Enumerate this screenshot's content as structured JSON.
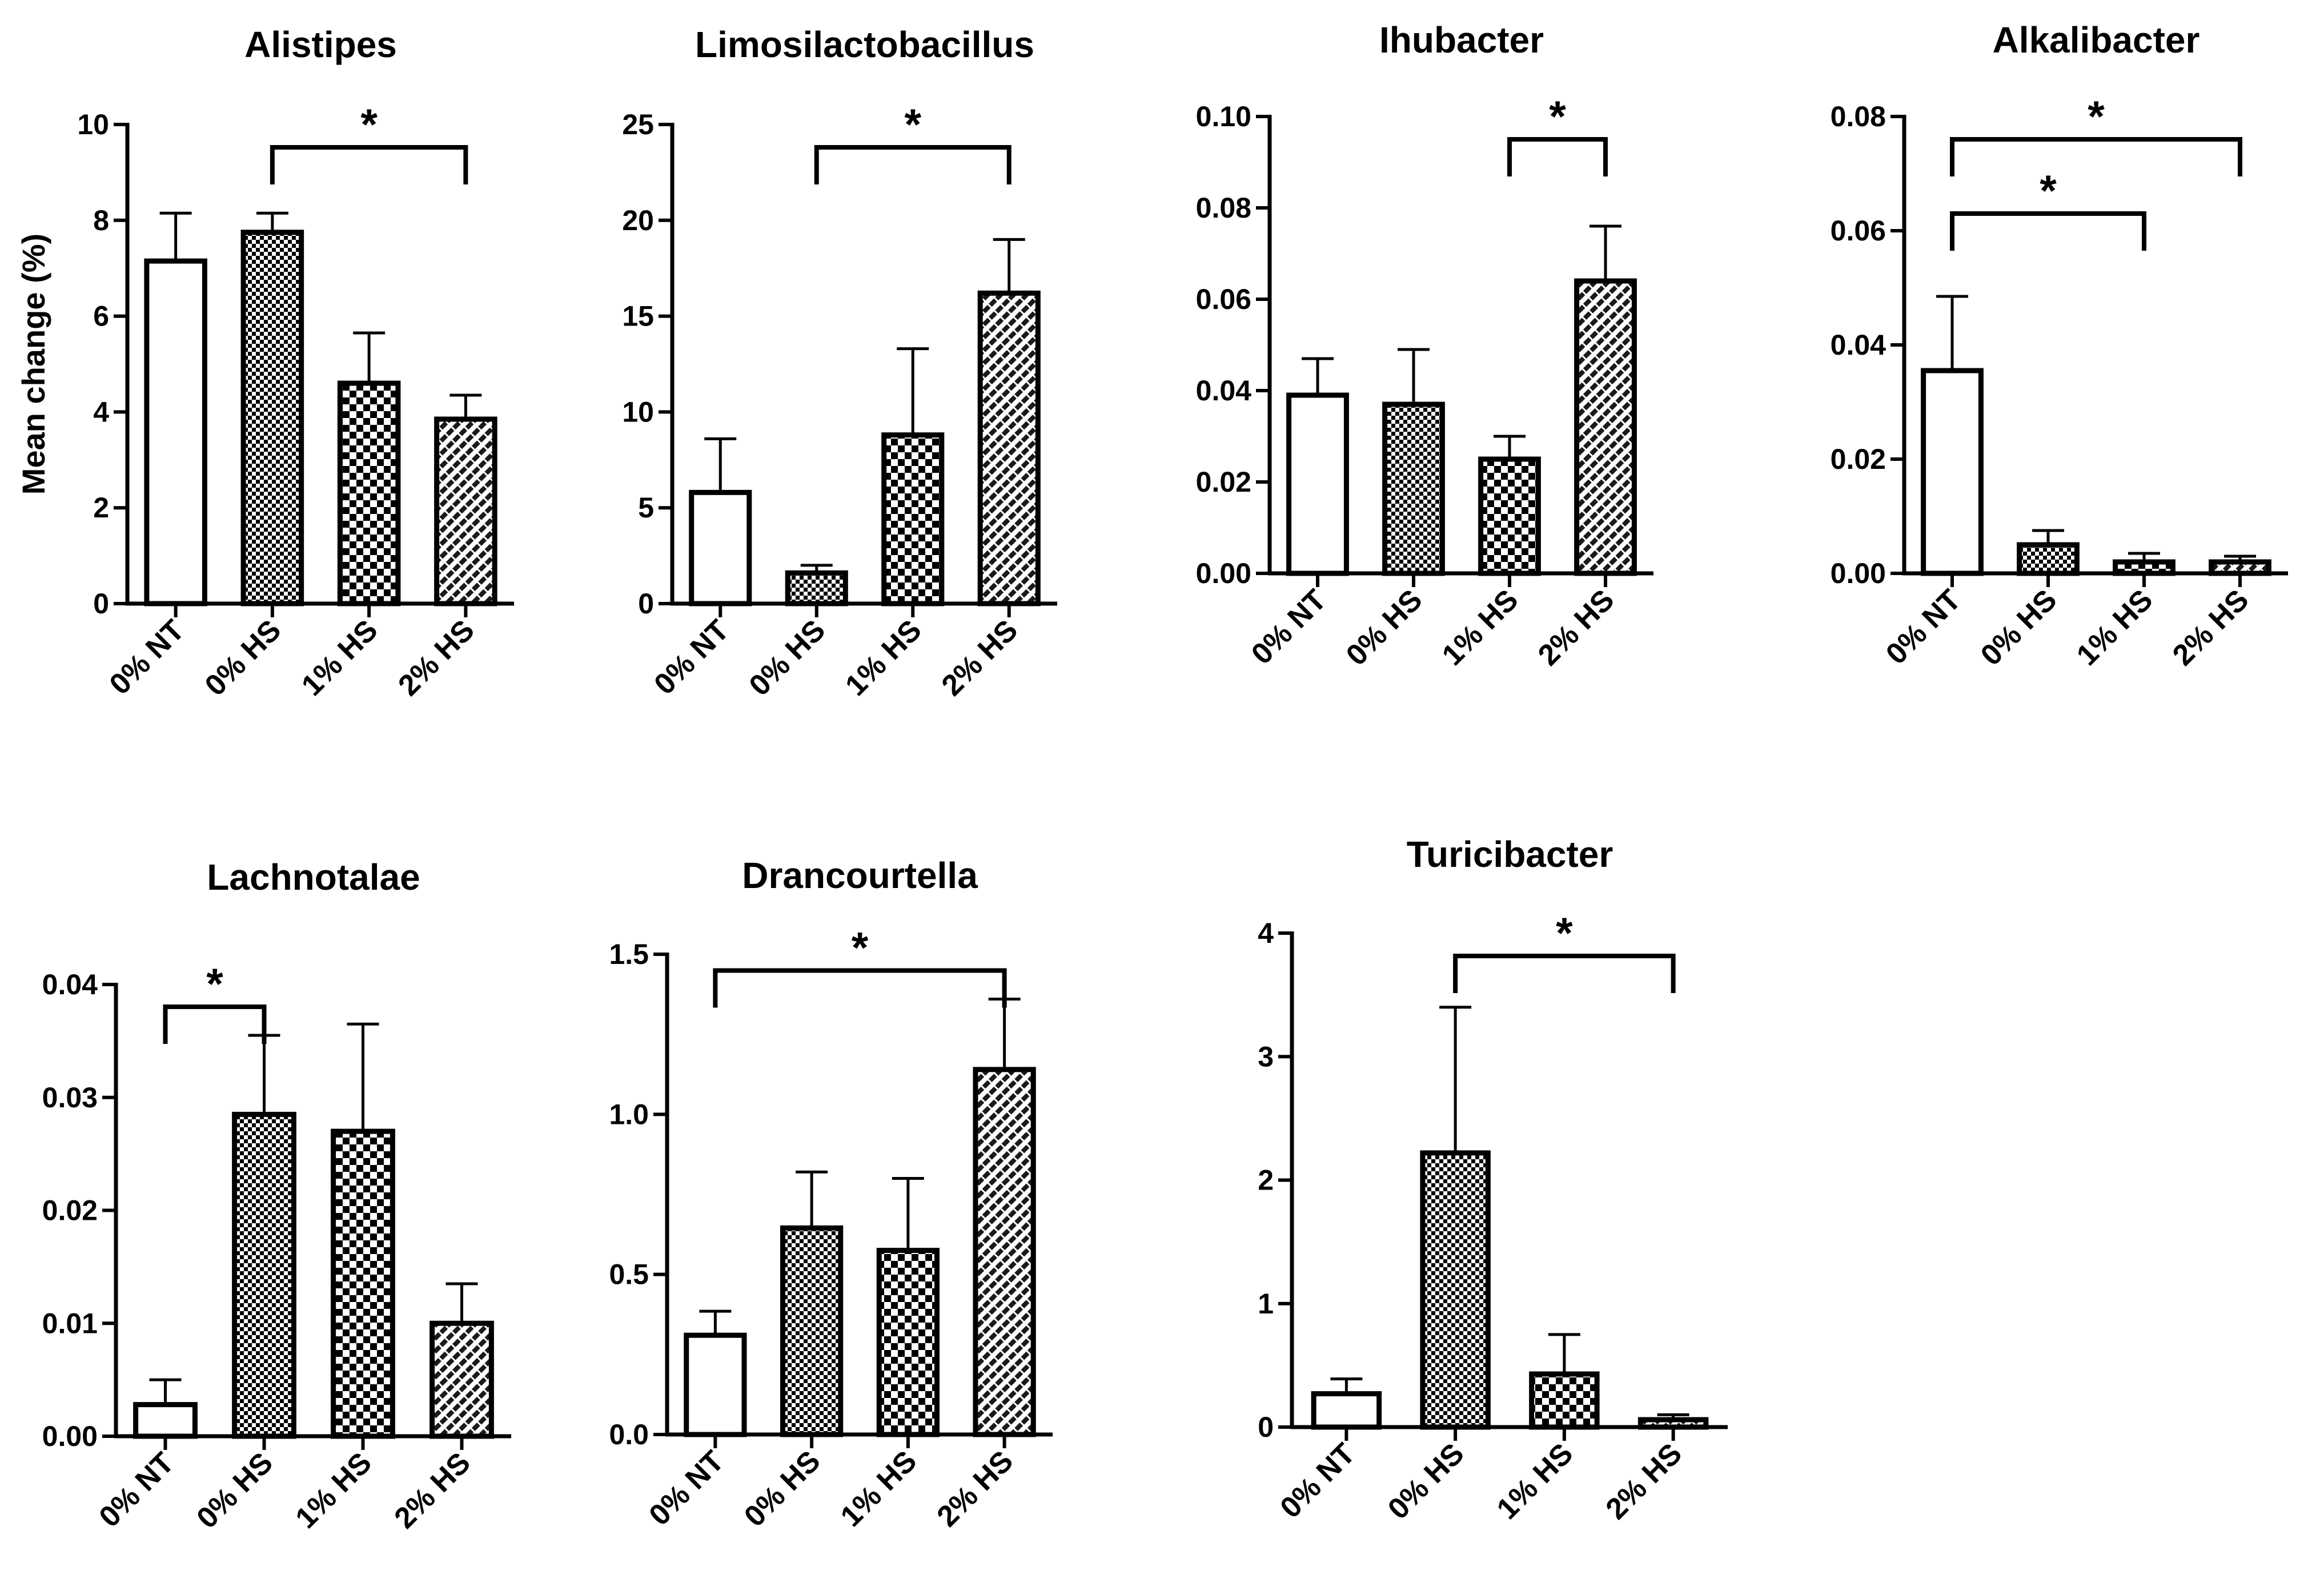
{
  "chart_data": [
    {
      "type": "bar",
      "title": "Alistipes",
      "ylabel": "Mean change (%)",
      "categories": [
        "0% NT",
        "0% HS",
        "1% HS",
        "2% HS"
      ],
      "values": [
        7.15,
        7.75,
        4.6,
        3.85
      ],
      "errors": [
        1.0,
        0.4,
        1.05,
        0.5
      ],
      "ylim": [
        0,
        10
      ],
      "yticks": [
        "0",
        "2",
        "4",
        "6",
        "8",
        "10"
      ],
      "brackets": [
        {
          "from": 1,
          "to": 3,
          "label": "*"
        }
      ]
    },
    {
      "type": "bar",
      "title": "Limosilactobacillus",
      "ylabel": "",
      "categories": [
        "0% NT",
        "0% HS",
        "1% HS",
        "2% HS"
      ],
      "values": [
        5.8,
        1.6,
        8.8,
        16.2
      ],
      "errors": [
        2.8,
        0.4,
        4.5,
        2.8
      ],
      "ylim": [
        0,
        25
      ],
      "yticks": [
        "0",
        "5",
        "10",
        "15",
        "20",
        "25"
      ],
      "brackets": [
        {
          "from": 1,
          "to": 3,
          "label": "*"
        }
      ]
    },
    {
      "type": "bar",
      "title": "Ihubacter",
      "ylabel": "",
      "categories": [
        "0% NT",
        "0% HS",
        "1% HS",
        "2% HS"
      ],
      "values": [
        0.039,
        0.037,
        0.025,
        0.064
      ],
      "errors": [
        0.008,
        0.012,
        0.005,
        0.012
      ],
      "ylim": [
        0,
        0.1
      ],
      "yticks": [
        "0.00",
        "0.02",
        "0.04",
        "0.06",
        "0.08",
        "0.10"
      ],
      "brackets": [
        {
          "from": 2,
          "to": 3,
          "label": "*"
        }
      ]
    },
    {
      "type": "bar",
      "title": "Alkalibacter",
      "ylabel": "",
      "categories": [
        "0% NT",
        "0% HS",
        "1% HS",
        "2% HS"
      ],
      "values": [
        0.0355,
        0.005,
        0.002,
        0.002
      ],
      "errors": [
        0.013,
        0.0025,
        0.0015,
        0.001
      ],
      "ylim": [
        0,
        0.08
      ],
      "yticks": [
        "0.00",
        "0.02",
        "0.04",
        "0.06",
        "0.08"
      ],
      "brackets": [
        {
          "from": 0,
          "to": 3,
          "label": "*"
        },
        {
          "from": 0,
          "to": 2,
          "label": "*"
        }
      ]
    },
    {
      "type": "bar",
      "title": "Lachnotalae",
      "ylabel": "",
      "categories": [
        "0% NT",
        "0% HS",
        "1% HS",
        "2% HS"
      ],
      "values": [
        0.0028,
        0.0285,
        0.027,
        0.01
      ],
      "errors": [
        0.0022,
        0.007,
        0.0095,
        0.0035
      ],
      "ylim": [
        0,
        0.04
      ],
      "yticks": [
        "0.00",
        "0.01",
        "0.02",
        "0.03",
        "0.04"
      ],
      "brackets": [
        {
          "from": 0,
          "to": 1,
          "label": "*"
        }
      ]
    },
    {
      "type": "bar",
      "title": "Drancourtella",
      "ylabel": "",
      "categories": [
        "0% NT",
        "0% HS",
        "1% HS",
        "2% HS"
      ],
      "values": [
        0.31,
        0.645,
        0.575,
        1.14
      ],
      "errors": [
        0.075,
        0.175,
        0.225,
        0.22
      ],
      "ylim": [
        0,
        1.5
      ],
      "yticks": [
        "0.0",
        "0.5",
        "1.0",
        "1.5"
      ],
      "brackets": [
        {
          "from": 0,
          "to": 3,
          "label": "*"
        }
      ]
    },
    {
      "type": "bar",
      "title": "Turicibacter",
      "ylabel": "",
      "categories": [
        "0% NT",
        "0% HS",
        "1% HS",
        "2% HS"
      ],
      "values": [
        0.27,
        2.22,
        0.43,
        0.06
      ],
      "errors": [
        0.12,
        1.18,
        0.32,
        0.04
      ],
      "ylim": [
        0,
        4
      ],
      "yticks": [
        "0",
        "1",
        "2",
        "3",
        "4"
      ],
      "brackets": [
        {
          "from": 1,
          "to": 3,
          "label": "*"
        }
      ]
    }
  ]
}
